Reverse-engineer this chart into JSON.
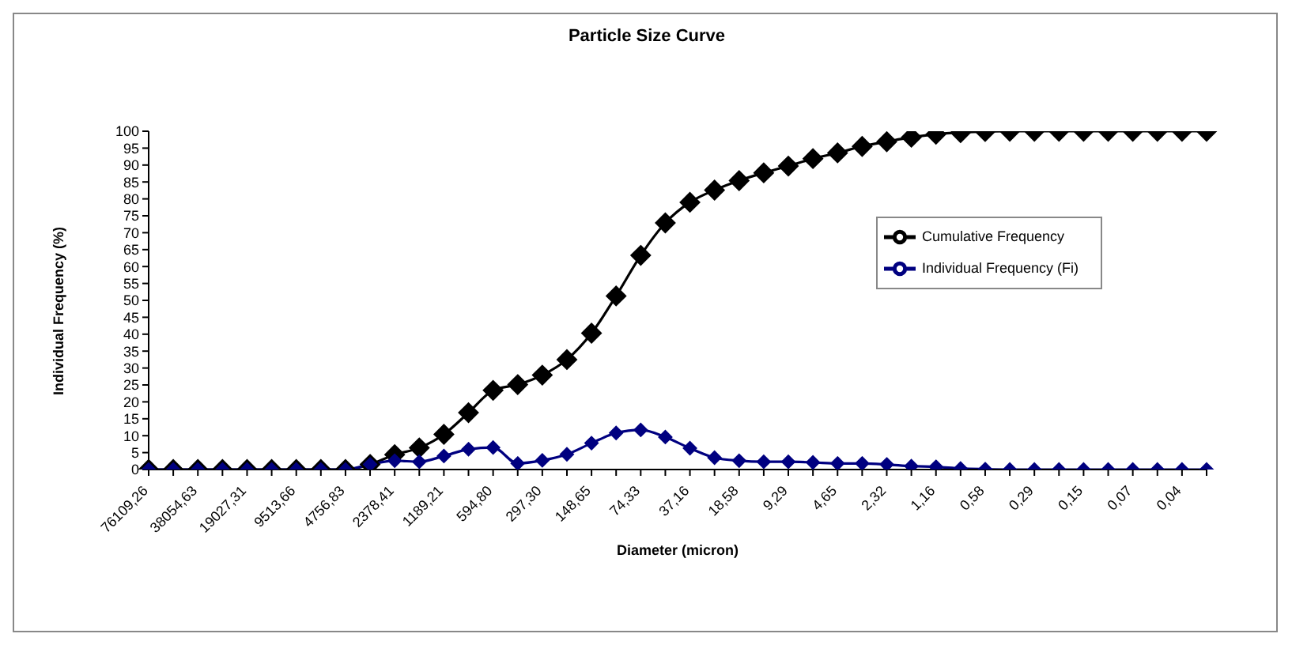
{
  "chart_data": {
    "type": "line",
    "title": "Particle Size Curve",
    "xlabel": "Diameter (micron)",
    "ylabel": "Individual Frequency (%)",
    "categories": [
      "76109,26",
      null,
      "38054,63",
      null,
      "19027,31",
      null,
      "9513,66",
      null,
      "4756,83",
      null,
      "2378,41",
      null,
      "1189,21",
      null,
      "594,80",
      null,
      "297,30",
      null,
      "148,65",
      null,
      "74,33",
      null,
      "37,16",
      null,
      "18,58",
      null,
      "9,29",
      null,
      "4,65",
      null,
      "2,32",
      null,
      "1,16",
      null,
      "0,58",
      null,
      "0,29",
      null,
      "0,15",
      null,
      "0,07",
      null,
      "0,04",
      null
    ],
    "series": [
      {
        "name": "Cumulative Frequency",
        "color": "#000000",
        "values": [
          0,
          0,
          0,
          0,
          0,
          0,
          0,
          0,
          0,
          1.5,
          4.4,
          6.4,
          10.4,
          16.8,
          23.4,
          25.1,
          27.9,
          32.5,
          40.3,
          51.3,
          63.3,
          72.9,
          79,
          82.6,
          85.4,
          87.7,
          89.7,
          91.9,
          93.6,
          95.5,
          96.9,
          98.2,
          99.1,
          99.6,
          99.9,
          100,
          100,
          100,
          100,
          100,
          100,
          100,
          100,
          100
        ]
      },
      {
        "name": "Individual  Frequency (Fi)",
        "color": "#000080",
        "values": [
          0,
          0,
          0,
          0,
          0,
          0,
          0,
          0,
          0,
          1.5,
          2.6,
          2.3,
          4,
          6,
          6.5,
          1.8,
          2.7,
          4.5,
          7.8,
          10.8,
          11.7,
          9.6,
          6.3,
          3.5,
          2.6,
          2.3,
          2.3,
          2.1,
          1.8,
          1.8,
          1.5,
          1,
          0.8,
          0.3,
          0.1,
          0,
          0,
          0,
          0,
          0,
          0,
          0,
          0,
          0
        ]
      }
    ],
    "ylim": [
      0,
      100
    ],
    "yticks": [
      0,
      5,
      10,
      15,
      20,
      25,
      30,
      35,
      40,
      45,
      50,
      55,
      60,
      65,
      70,
      75,
      80,
      85,
      90,
      95,
      100
    ],
    "grid": false,
    "legend": "top right",
    "marker": "diamond",
    "line_style": "solid"
  }
}
